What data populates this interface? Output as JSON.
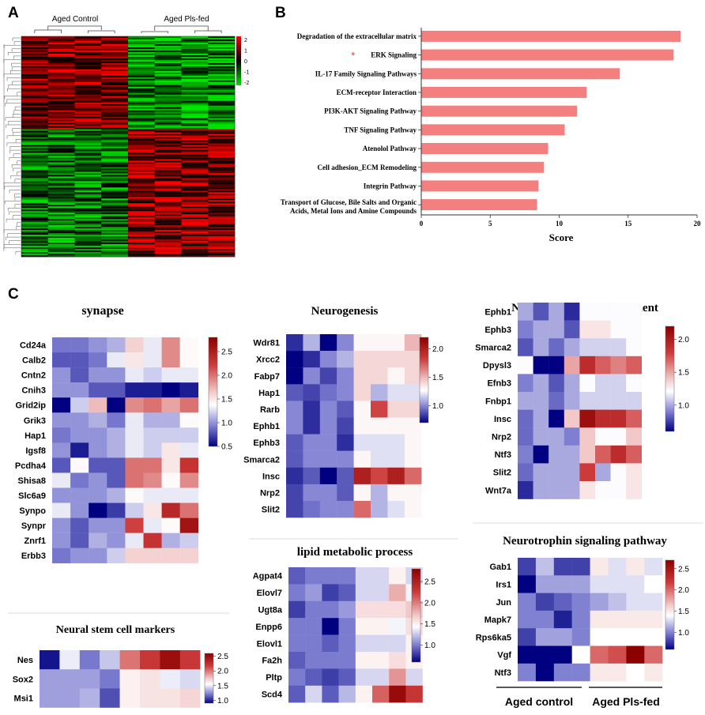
{
  "panel_labels": {
    "a": "A",
    "b": "B",
    "c": "C"
  },
  "heatmap_a": {
    "group_labels": [
      "Aged Control",
      "Aged Pls-fed"
    ],
    "colorbar_ticks": [
      "2",
      "1",
      "0",
      "-1",
      "-2"
    ],
    "colors": {
      "high": "#ff0000",
      "mid": "#000000",
      "low": "#00e000"
    }
  },
  "chart_data": [
    {
      "type": "bar",
      "orientation": "horizontal",
      "title": "",
      "xlabel": "Score",
      "ylabel": "",
      "xlim": [
        0,
        20
      ],
      "xticks": [
        "0",
        "5",
        "10",
        "15",
        "20"
      ],
      "bar_color": "#f47f7f",
      "highlight_marker": "*",
      "highlight_index": 1,
      "categories": [
        "Degradation of the extracellular matrix",
        "ERK Signaling",
        "IL-17 Family Signaling Pathways",
        "ECM-receptor Interaction",
        "PI3K-AKT Signaling Pathway",
        "TNF Signaling Pathway",
        "Atenolol Pathway",
        "Cell adhesion_ECM Remodeling",
        "Integrin Pathway",
        "Transport of Glucose, Bile Salts and Organic Acids, Metal Ions and Amine Compounds"
      ],
      "values": [
        18.8,
        18.3,
        14.4,
        12.0,
        11.3,
        10.4,
        9.2,
        8.9,
        8.5,
        8.4
      ]
    },
    {
      "type": "heatmap",
      "title": "synapse",
      "rows": [
        "Cd24a",
        "Calb2",
        "Cntn2",
        "Cnih3",
        "Grid2ip",
        "Grik3",
        "Hap1",
        "Igsf8",
        "Pcdha4",
        "Shisa8",
        "Slc6a9",
        "Synpo",
        "Synpr",
        "Znrf1",
        "Erbb3"
      ],
      "scale": [
        0.5,
        2.8
      ],
      "colorbar_ticks": [
        "2.5",
        "2.0",
        "1.5",
        "1.0",
        "0.5"
      ],
      "values": [
        [
          0.9,
          0.9,
          1.0,
          1.1,
          1.6,
          1.3,
          1.9,
          1.4
        ],
        [
          0.8,
          0.8,
          0.9,
          1.3,
          1.5,
          1.3,
          1.9,
          1.4
        ],
        [
          1.0,
          0.8,
          1.0,
          1.0,
          1.3,
          1.2,
          1.3,
          1.3
        ],
        [
          1.0,
          1.0,
          0.8,
          0.8,
          0.6,
          0.6,
          0.5,
          0.6
        ],
        [
          0.4,
          1.2,
          1.7,
          0.4,
          1.9,
          2.0,
          1.8,
          2.0
        ],
        [
          1.0,
          1.0,
          1.1,
          0.9,
          1.3,
          1.1,
          1.1,
          1.4
        ],
        [
          0.9,
          1.0,
          1.0,
          1.1,
          1.3,
          1.2,
          1.2,
          1.2
        ],
        [
          1.0,
          0.6,
          1.0,
          1.1,
          1.3,
          1.2,
          1.5,
          1.3
        ],
        [
          0.8,
          1.4,
          0.8,
          0.8,
          2.0,
          2.0,
          1.5,
          2.3
        ],
        [
          1.3,
          0.9,
          1.0,
          0.8,
          2.0,
          1.9,
          1.4,
          1.9
        ],
        [
          1.0,
          1.0,
          1.0,
          1.1,
          1.4,
          1.3,
          1.3,
          1.3
        ],
        [
          1.3,
          1.0,
          0.5,
          0.7,
          1.2,
          1.5,
          2.4,
          2.0
        ],
        [
          1.0,
          0.8,
          1.0,
          1.0,
          2.2,
          1.3,
          1.4,
          2.6
        ],
        [
          1.0,
          0.8,
          1.1,
          1.0,
          1.3,
          2.3,
          1.1,
          1.2
        ],
        [
          0.9,
          1.0,
          1.0,
          1.2,
          1.6,
          1.6,
          1.6,
          1.6
        ]
      ]
    },
    {
      "type": "heatmap",
      "title": "Neurogenesis",
      "rows": [
        "Wdr81",
        "Xrcc2",
        "Fabp7",
        "Hap1",
        "Rarb",
        "Ephb1",
        "Ephb3",
        "Smarca2",
        "Insc",
        "Nrp2",
        "Slit2"
      ],
      "scale": [
        0.7,
        2.2
      ],
      "colorbar_ticks": [
        "2.0",
        "1.5",
        "1.0"
      ],
      "values": [
        [
          0.8,
          1.1,
          0.7,
          1.0,
          1.3,
          1.3,
          1.3,
          1.5
        ],
        [
          0.7,
          0.8,
          1.0,
          1.1,
          1.4,
          1.4,
          1.4,
          1.4
        ],
        [
          0.6,
          1.0,
          0.85,
          1.0,
          1.4,
          1.4,
          1.3,
          1.4
        ],
        [
          0.9,
          0.85,
          0.95,
          1.0,
          1.4,
          1.1,
          1.2,
          1.2
        ],
        [
          1.0,
          0.8,
          1.0,
          0.9,
          1.3,
          1.8,
          1.4,
          1.4
        ],
        [
          1.0,
          0.8,
          1.0,
          0.85,
          1.3,
          1.3,
          1.3,
          1.3
        ],
        [
          0.9,
          1.0,
          1.0,
          0.8,
          1.2,
          1.2,
          1.2,
          1.3
        ],
        [
          0.9,
          1.0,
          1.0,
          1.0,
          1.3,
          1.2,
          1.2,
          1.3
        ],
        [
          0.8,
          0.9,
          0.6,
          0.9,
          2.0,
          1.8,
          2.0,
          1.7
        ],
        [
          0.85,
          1.0,
          1.0,
          0.9,
          1.3,
          1.1,
          1.3,
          1.3
        ],
        [
          0.85,
          0.95,
          1.0,
          1.0,
          1.7,
          1.1,
          1.2,
          1.3
        ]
      ]
    },
    {
      "type": "heatmap",
      "title": "Nervous system development",
      "rows": [
        "Ephb1",
        "Ephb3",
        "Smarca2",
        "Dpysl3",
        "Efnb3",
        "Fnbp1",
        "Insc",
        "Nrp2",
        "Ntf3",
        "Slit2",
        "Wnt7a"
      ],
      "scale": [
        0.6,
        2.2
      ],
      "colorbar_ticks": [
        "2.0",
        "1.5",
        "1.0"
      ],
      "values": [
        [
          1.0,
          0.8,
          1.0,
          0.7,
          1.2,
          1.2,
          1.2,
          1.2
        ],
        [
          0.9,
          1.0,
          1.0,
          0.8,
          1.3,
          1.3,
          1.2,
          1.2
        ],
        [
          0.8,
          1.0,
          0.85,
          1.0,
          1.1,
          1.1,
          1.1,
          1.2
        ],
        [
          1.2,
          0.4,
          0.4,
          1.5,
          1.9,
          1.7,
          1.6,
          1.7
        ],
        [
          0.9,
          1.0,
          0.8,
          1.0,
          1.2,
          1.1,
          1.1,
          1.2
        ],
        [
          1.0,
          1.0,
          0.85,
          1.0,
          1.1,
          1.1,
          1.1,
          1.1
        ],
        [
          0.85,
          1.0,
          0.6,
          1.4,
          2.1,
          1.9,
          1.9,
          1.7
        ],
        [
          0.85,
          1.0,
          1.0,
          0.9,
          1.4,
          1.2,
          1.2,
          1.4
        ],
        [
          0.9,
          0.6,
          1.0,
          1.0,
          1.4,
          1.7,
          1.9,
          1.7
        ],
        [
          0.85,
          1.0,
          1.0,
          1.0,
          1.8,
          1.0,
          1.2,
          1.3
        ],
        [
          0.7,
          1.0,
          1.0,
          1.0,
          1.3,
          1.2,
          1.2,
          1.3
        ]
      ]
    },
    {
      "type": "heatmap",
      "title": "Neural stem cell markers",
      "rows": [
        "Nes",
        "Sox2",
        "Msi1"
      ],
      "scale": [
        0.9,
        2.6
      ],
      "colorbar_ticks": [
        "2.5",
        "2.0",
        "1.5",
        "1.0"
      ],
      "values": [
        [
          0.95,
          1.5,
          1.2,
          1.4,
          2.0,
          2.2,
          2.5,
          2.2
        ],
        [
          1.3,
          1.3,
          1.3,
          1.2,
          1.6,
          1.65,
          1.5,
          1.45
        ],
        [
          1.3,
          1.3,
          1.35,
          1.1,
          1.6,
          1.65,
          1.65,
          1.7
        ]
      ]
    },
    {
      "type": "heatmap",
      "title": "lipid metabolic process",
      "rows": [
        "Agpat4",
        "Elovl7",
        "Ugt8a",
        "Enpp6",
        "Elovl1",
        "Fa2h",
        "Pltp",
        "Scd4"
      ],
      "scale": [
        0.6,
        2.8
      ],
      "colorbar_ticks": [
        "2.5",
        "2.0",
        "1.5",
        "1.0"
      ],
      "values": [
        [
          0.9,
          1.0,
          1.0,
          1.0,
          1.3,
          1.3,
          1.5,
          1.3
        ],
        [
          1.0,
          1.1,
          0.8,
          0.9,
          1.3,
          1.3,
          1.8,
          1.4
        ],
        [
          0.8,
          1.0,
          1.0,
          1.1,
          1.6,
          1.6,
          1.6,
          1.7
        ],
        [
          1.0,
          1.0,
          0.4,
          1.0,
          1.5,
          1.5,
          1.4,
          1.6
        ],
        [
          1.0,
          1.0,
          0.9,
          1.0,
          1.3,
          1.3,
          1.3,
          1.5
        ],
        [
          0.9,
          1.0,
          1.0,
          1.0,
          1.5,
          1.5,
          1.6,
          1.5
        ],
        [
          1.0,
          0.9,
          0.8,
          0.9,
          1.3,
          1.3,
          1.9,
          1.3
        ],
        [
          0.9,
          1.3,
          0.9,
          1.2,
          1.5,
          2.1,
          2.7,
          2.3
        ]
      ]
    },
    {
      "type": "heatmap",
      "title": "Neurotrophin signaling pathway",
      "rows": [
        "Gab1",
        "Irs1",
        "Jun",
        "Mapk7",
        "Rps6ka5",
        "Vgf",
        "Ntf3"
      ],
      "scale": [
        0.6,
        2.7
      ],
      "colorbar_ticks": [
        "2.5",
        "2.0",
        "1.5",
        "1.0"
      ],
      "values": [
        [
          0.8,
          1.2,
          0.8,
          0.8,
          1.5,
          1.3,
          1.5,
          1.3
        ],
        [
          0.4,
          1.1,
          1.1,
          1.1,
          1.3,
          1.3,
          1.3,
          1.4
        ],
        [
          1.0,
          0.8,
          0.9,
          1.0,
          1.1,
          1.2,
          1.3,
          1.3
        ],
        [
          1.0,
          1.0,
          0.7,
          1.0,
          1.5,
          1.5,
          1.5,
          1.5
        ],
        [
          0.8,
          1.1,
          1.1,
          1.0,
          1.4,
          1.4,
          1.4,
          1.4
        ],
        [
          0.5,
          0.5,
          0.4,
          1.4,
          2.0,
          2.1,
          2.7,
          2.0
        ],
        [
          1.0,
          0.6,
          1.0,
          1.0,
          1.5,
          1.5,
          1.4,
          1.5
        ]
      ]
    }
  ],
  "group_labels_c": {
    "control": "Aged control",
    "treated": "Aged Pls-fed"
  }
}
